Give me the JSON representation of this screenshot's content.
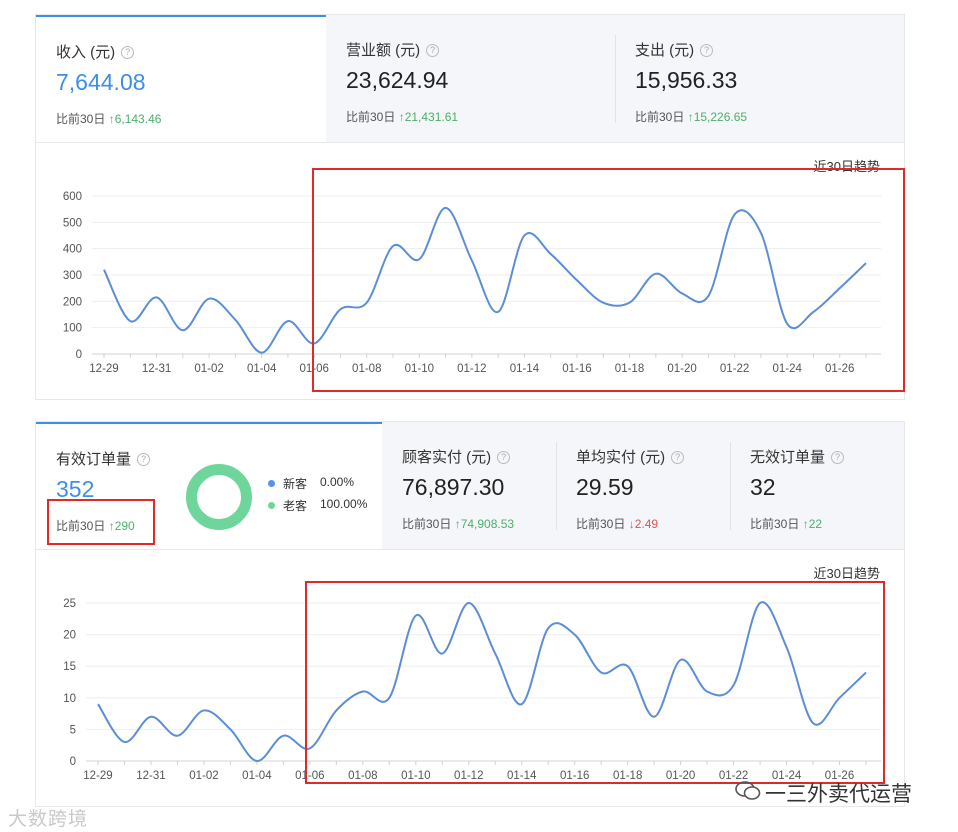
{
  "panel1": {
    "stats": [
      {
        "label": "收入 (元)",
        "value": "7,644.08",
        "cmp_label": "比前30日",
        "cmp_value": "↑6,143.46",
        "dir": "up"
      },
      {
        "label": "营业额 (元)",
        "value": "23,624.94",
        "cmp_label": "比前30日",
        "cmp_value": "↑21,431.61",
        "dir": "up"
      },
      {
        "label": "支出 (元)",
        "value": "15,956.33",
        "cmp_label": "比前30日",
        "cmp_value": "↑15,226.65",
        "dir": "up"
      }
    ],
    "trend_title": "近30日趋势"
  },
  "panel2": {
    "stats": [
      {
        "label": "有效订单量",
        "value": "352",
        "cmp_label": "比前30日",
        "cmp_value": "↑290",
        "dir": "up"
      },
      {
        "label": "顾客实付 (元)",
        "value": "76,897.30",
        "cmp_label": "比前30日",
        "cmp_value": "↑74,908.53",
        "dir": "up"
      },
      {
        "label": "单均实付 (元)",
        "value": "29.59",
        "cmp_label": "比前30日",
        "cmp_value": "↓2.49",
        "dir": "down"
      },
      {
        "label": "无效订单量",
        "value": "32",
        "cmp_label": "比前30日",
        "cmp_value": "↑22",
        "dir": "up"
      }
    ],
    "customer_legend": [
      {
        "name": "新客",
        "pct": "0.00%",
        "color": "#5b8ff0"
      },
      {
        "name": "老客",
        "pct": "100.00%",
        "color": "#6fd69b"
      }
    ],
    "trend_title": "近30日趋势"
  },
  "chart_data": [
    {
      "type": "line",
      "title": "近30日趋势",
      "x": [
        "12-29",
        "12-30",
        "12-31",
        "01-01",
        "01-02",
        "01-03",
        "01-04",
        "01-05",
        "01-06",
        "01-07",
        "01-08",
        "01-09",
        "01-10",
        "01-11",
        "01-12",
        "01-13",
        "01-14",
        "01-15",
        "01-16",
        "01-17",
        "01-18",
        "01-19",
        "01-20",
        "01-21",
        "01-22",
        "01-23",
        "01-24",
        "01-25",
        "01-26",
        "01-27"
      ],
      "x_tick_labels": [
        "12-29",
        "12-31",
        "01-02",
        "01-04",
        "01-06",
        "01-08",
        "01-10",
        "01-12",
        "01-14",
        "01-16",
        "01-18",
        "01-20",
        "01-22",
        "01-24",
        "01-26"
      ],
      "y_ticks": [
        0,
        100,
        200,
        300,
        400,
        500,
        600
      ],
      "ylim": [
        0,
        600
      ],
      "color": "#5b8ed6",
      "values": [
        320,
        125,
        215,
        90,
        210,
        130,
        5,
        125,
        40,
        170,
        195,
        410,
        360,
        555,
        355,
        160,
        450,
        380,
        280,
        195,
        195,
        305,
        230,
        220,
        530,
        460,
        115,
        160,
        250,
        345
      ]
    },
    {
      "type": "line",
      "title": "近30日趋势",
      "x": [
        "12-29",
        "12-30",
        "12-31",
        "01-01",
        "01-02",
        "01-03",
        "01-04",
        "01-05",
        "01-06",
        "01-07",
        "01-08",
        "01-09",
        "01-10",
        "01-11",
        "01-12",
        "01-13",
        "01-14",
        "01-15",
        "01-16",
        "01-17",
        "01-18",
        "01-19",
        "01-20",
        "01-21",
        "01-22",
        "01-23",
        "01-24",
        "01-25",
        "01-26",
        "01-27"
      ],
      "x_tick_labels": [
        "12-29",
        "12-31",
        "01-02",
        "01-04",
        "01-06",
        "01-08",
        "01-10",
        "01-12",
        "01-14",
        "01-16",
        "01-18",
        "01-20",
        "01-22",
        "01-24",
        "01-26"
      ],
      "y_ticks": [
        0,
        5,
        10,
        15,
        20,
        25
      ],
      "ylim": [
        0,
        25
      ],
      "color": "#5b8ed6",
      "values": [
        9,
        3,
        7,
        4,
        8,
        5,
        0,
        4,
        2,
        8,
        11,
        10,
        23,
        17,
        25,
        17,
        9,
        21,
        20,
        14,
        15,
        7,
        16,
        11,
        12,
        25,
        18,
        6,
        10,
        14
      ]
    }
  ],
  "watermarks": {
    "left": "大数跨境",
    "right": "一三外卖代运营"
  }
}
